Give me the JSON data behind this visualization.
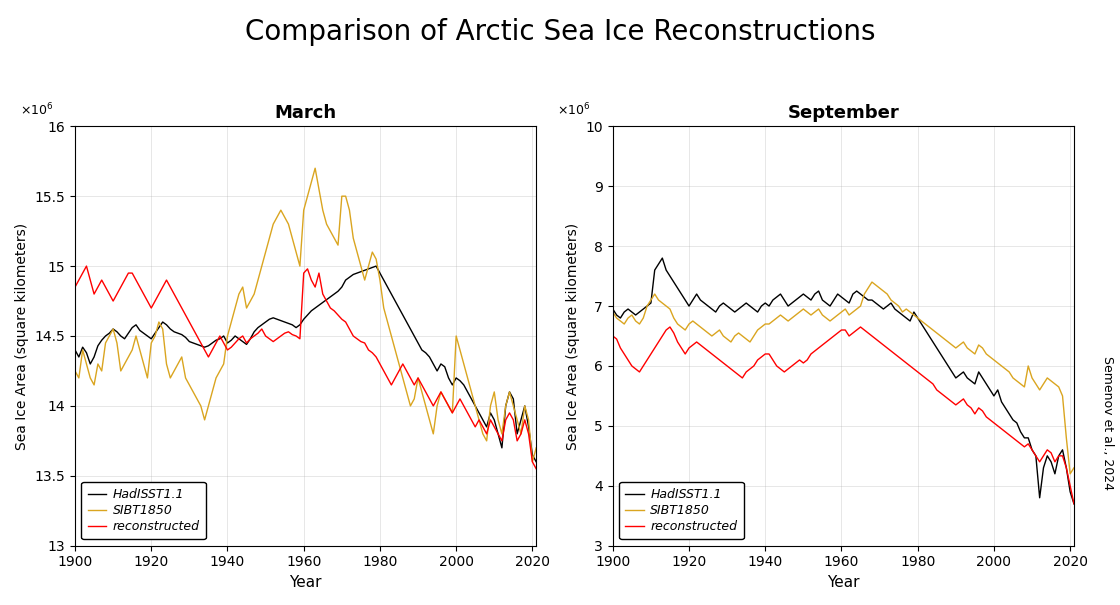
{
  "title": "Comparison of Arctic Sea Ice Reconstructions",
  "march_title": "March",
  "september_title": "September",
  "ylabel": "Sea Ice Area (square kilometers)",
  "xlabel": "Year",
  "watermark": "Semenov et al., 2024",
  "legend_labels": [
    "HadISST1.1",
    "SIBT1850",
    "reconstructed"
  ],
  "colors": [
    "black",
    "#DAA520",
    "red"
  ],
  "march_ylim": [
    13.0,
    16.0
  ],
  "march_yticks": [
    13.0,
    13.5,
    14.0,
    14.5,
    15.0,
    15.5,
    16.0
  ],
  "september_ylim": [
    3.0,
    10.0
  ],
  "september_yticks": [
    3.0,
    4.0,
    5.0,
    6.0,
    7.0,
    8.0,
    9.0,
    10.0
  ],
  "xlim": [
    1900,
    2021
  ],
  "xticks": [
    1900,
    1920,
    1940,
    1960,
    1980,
    2000,
    2020
  ],
  "march_had": {
    "years": [
      1900,
      1901,
      1902,
      1903,
      1904,
      1905,
      1906,
      1907,
      1908,
      1909,
      1910,
      1911,
      1912,
      1913,
      1914,
      1915,
      1916,
      1917,
      1918,
      1919,
      1920,
      1921,
      1922,
      1923,
      1924,
      1925,
      1926,
      1927,
      1928,
      1929,
      1930,
      1931,
      1932,
      1933,
      1934,
      1935,
      1936,
      1937,
      1938,
      1939,
      1940,
      1941,
      1942,
      1943,
      1944,
      1945,
      1946,
      1947,
      1948,
      1949,
      1950,
      1951,
      1952,
      1953,
      1954,
      1955,
      1956,
      1957,
      1958,
      1959,
      1960,
      1961,
      1962,
      1963,
      1964,
      1965,
      1966,
      1967,
      1968,
      1969,
      1970,
      1971,
      1972,
      1973,
      1974,
      1975,
      1976,
      1977,
      1978,
      1979,
      1980,
      1981,
      1982,
      1983,
      1984,
      1985,
      1986,
      1987,
      1988,
      1989,
      1990,
      1991,
      1992,
      1993,
      1994,
      1995,
      1996,
      1997,
      1998,
      1999,
      2000,
      2001,
      2002,
      2003,
      2004,
      2005,
      2006,
      2007,
      2008,
      2009,
      2010,
      2011,
      2012,
      2013,
      2014,
      2015,
      2016,
      2017,
      2018,
      2019,
      2020,
      2021
    ],
    "values": [
      14.4,
      14.35,
      14.42,
      14.38,
      14.3,
      14.35,
      14.43,
      14.47,
      14.5,
      14.52,
      14.55,
      14.53,
      14.5,
      14.48,
      14.52,
      14.56,
      14.58,
      14.54,
      14.52,
      14.5,
      14.48,
      14.52,
      14.56,
      14.6,
      14.58,
      14.55,
      14.53,
      14.52,
      14.51,
      14.49,
      14.46,
      14.45,
      14.44,
      14.43,
      14.42,
      14.43,
      14.45,
      14.47,
      14.48,
      14.5,
      14.45,
      14.47,
      14.5,
      14.48,
      14.46,
      14.44,
      14.48,
      14.53,
      14.56,
      14.58,
      14.6,
      14.62,
      14.63,
      14.62,
      14.61,
      14.6,
      14.59,
      14.58,
      14.56,
      14.58,
      14.62,
      14.65,
      14.68,
      14.7,
      14.72,
      14.74,
      14.76,
      14.78,
      14.8,
      14.82,
      14.85,
      14.9,
      14.92,
      14.94,
      14.95,
      14.96,
      14.97,
      14.98,
      14.99,
      15.0,
      14.95,
      14.9,
      14.85,
      14.8,
      14.75,
      14.7,
      14.65,
      14.6,
      14.55,
      14.5,
      14.45,
      14.4,
      14.38,
      14.35,
      14.3,
      14.25,
      14.3,
      14.28,
      14.2,
      14.15,
      14.2,
      14.18,
      14.15,
      14.1,
      14.05,
      14.0,
      13.95,
      13.9,
      13.85,
      13.95,
      13.9,
      13.8,
      13.7,
      14.0,
      14.1,
      14.05,
      13.8,
      13.9,
      14.0,
      13.85,
      13.65,
      13.6
    ]
  },
  "march_sibt": {
    "years": [
      1900,
      1901,
      1902,
      1903,
      1904,
      1905,
      1906,
      1907,
      1908,
      1909,
      1910,
      1911,
      1912,
      1913,
      1914,
      1915,
      1916,
      1917,
      1918,
      1919,
      1920,
      1921,
      1922,
      1923,
      1924,
      1925,
      1926,
      1927,
      1928,
      1929,
      1930,
      1931,
      1932,
      1933,
      1934,
      1935,
      1936,
      1937,
      1938,
      1939,
      1940,
      1941,
      1942,
      1943,
      1944,
      1945,
      1946,
      1947,
      1948,
      1949,
      1950,
      1951,
      1952,
      1953,
      1954,
      1955,
      1956,
      1957,
      1958,
      1959,
      1960,
      1961,
      1962,
      1963,
      1964,
      1965,
      1966,
      1967,
      1968,
      1969,
      1970,
      1971,
      1972,
      1973,
      1974,
      1975,
      1976,
      1977,
      1978,
      1979,
      1980,
      1981,
      1982,
      1983,
      1984,
      1985,
      1986,
      1987,
      1988,
      1989,
      1990,
      1991,
      1992,
      1993,
      1994,
      1995,
      1996,
      1997,
      1998,
      1999,
      2000,
      2001,
      2002,
      2003,
      2004,
      2005,
      2006,
      2007,
      2008,
      2009,
      2010,
      2011,
      2012,
      2013,
      2014,
      2015,
      2016,
      2017,
      2018,
      2019,
      2020,
      2021
    ],
    "values": [
      14.25,
      14.2,
      14.4,
      14.3,
      14.2,
      14.15,
      14.3,
      14.25,
      14.45,
      14.5,
      14.55,
      14.45,
      14.25,
      14.3,
      14.35,
      14.4,
      14.5,
      14.4,
      14.3,
      14.2,
      14.45,
      14.5,
      14.6,
      14.55,
      14.3,
      14.2,
      14.25,
      14.3,
      14.35,
      14.2,
      14.15,
      14.1,
      14.05,
      14.0,
      13.9,
      14.0,
      14.1,
      14.2,
      14.25,
      14.3,
      14.5,
      14.6,
      14.7,
      14.8,
      14.85,
      14.7,
      14.75,
      14.8,
      14.9,
      15.0,
      15.1,
      15.2,
      15.3,
      15.35,
      15.4,
      15.35,
      15.3,
      15.2,
      15.1,
      15.0,
      15.4,
      15.5,
      15.6,
      15.7,
      15.55,
      15.4,
      15.3,
      15.25,
      15.2,
      15.15,
      15.5,
      15.5,
      15.4,
      15.2,
      15.1,
      15.0,
      14.9,
      15.0,
      15.1,
      15.05,
      14.9,
      14.7,
      14.6,
      14.5,
      14.4,
      14.3,
      14.2,
      14.1,
      14.0,
      14.05,
      14.2,
      14.1,
      14.0,
      13.9,
      13.8,
      14.0,
      14.1,
      14.05,
      14.0,
      13.95,
      14.5,
      14.4,
      14.3,
      14.2,
      14.1,
      14.0,
      13.9,
      13.8,
      13.75,
      14.0,
      14.1,
      13.9,
      13.8,
      14.0,
      14.1,
      14.0,
      13.9,
      13.8,
      14.0,
      13.9,
      13.6,
      13.7
    ]
  },
  "march_rec": {
    "years": [
      1900,
      1901,
      1902,
      1903,
      1904,
      1905,
      1906,
      1907,
      1908,
      1909,
      1910,
      1911,
      1912,
      1913,
      1914,
      1915,
      1916,
      1917,
      1918,
      1919,
      1920,
      1921,
      1922,
      1923,
      1924,
      1925,
      1926,
      1927,
      1928,
      1929,
      1930,
      1931,
      1932,
      1933,
      1934,
      1935,
      1936,
      1937,
      1938,
      1939,
      1940,
      1941,
      1942,
      1943,
      1944,
      1945,
      1946,
      1947,
      1948,
      1949,
      1950,
      1951,
      1952,
      1953,
      1954,
      1955,
      1956,
      1957,
      1958,
      1959,
      1960,
      1961,
      1962,
      1963,
      1964,
      1965,
      1966,
      1967,
      1968,
      1969,
      1970,
      1971,
      1972,
      1973,
      1974,
      1975,
      1976,
      1977,
      1978,
      1979,
      1980,
      1981,
      1982,
      1983,
      1984,
      1985,
      1986,
      1987,
      1988,
      1989,
      1990,
      1991,
      1992,
      1993,
      1994,
      1995,
      1996,
      1997,
      1998,
      1999,
      2000,
      2001,
      2002,
      2003,
      2004,
      2005,
      2006,
      2007,
      2008,
      2009,
      2010,
      2011,
      2012,
      2013,
      2014,
      2015,
      2016,
      2017,
      2018,
      2019,
      2020,
      2021
    ],
    "values": [
      14.85,
      14.9,
      14.95,
      15.0,
      14.9,
      14.8,
      14.85,
      14.9,
      14.85,
      14.8,
      14.75,
      14.8,
      14.85,
      14.9,
      14.95,
      14.95,
      14.9,
      14.85,
      14.8,
      14.75,
      14.7,
      14.75,
      14.8,
      14.85,
      14.9,
      14.85,
      14.8,
      14.75,
      14.7,
      14.65,
      14.6,
      14.55,
      14.5,
      14.45,
      14.4,
      14.35,
      14.4,
      14.45,
      14.5,
      14.45,
      14.4,
      14.42,
      14.45,
      14.48,
      14.5,
      14.45,
      14.48,
      14.5,
      14.52,
      14.55,
      14.5,
      14.48,
      14.46,
      14.48,
      14.5,
      14.52,
      14.53,
      14.51,
      14.5,
      14.48,
      14.95,
      14.98,
      14.9,
      14.85,
      14.95,
      14.8,
      14.75,
      14.7,
      14.68,
      14.65,
      14.62,
      14.6,
      14.55,
      14.5,
      14.48,
      14.46,
      14.45,
      14.4,
      14.38,
      14.35,
      14.3,
      14.25,
      14.2,
      14.15,
      14.2,
      14.25,
      14.3,
      14.25,
      14.2,
      14.15,
      14.2,
      14.15,
      14.1,
      14.05,
      14.0,
      14.05,
      14.1,
      14.05,
      14.0,
      13.95,
      14.0,
      14.05,
      14.0,
      13.95,
      13.9,
      13.85,
      13.9,
      13.85,
      13.8,
      13.9,
      13.85,
      13.8,
      13.75,
      13.9,
      13.95,
      13.9,
      13.75,
      13.8,
      13.9,
      13.8,
      13.6,
      13.55
    ]
  },
  "sep_had": {
    "years": [
      1900,
      1901,
      1902,
      1903,
      1904,
      1905,
      1906,
      1907,
      1908,
      1909,
      1910,
      1911,
      1912,
      1913,
      1914,
      1915,
      1916,
      1917,
      1918,
      1919,
      1920,
      1921,
      1922,
      1923,
      1924,
      1925,
      1926,
      1927,
      1928,
      1929,
      1930,
      1931,
      1932,
      1933,
      1934,
      1935,
      1936,
      1937,
      1938,
      1939,
      1940,
      1941,
      1942,
      1943,
      1944,
      1945,
      1946,
      1947,
      1948,
      1949,
      1950,
      1951,
      1952,
      1953,
      1954,
      1955,
      1956,
      1957,
      1958,
      1959,
      1960,
      1961,
      1962,
      1963,
      1964,
      1965,
      1966,
      1967,
      1968,
      1969,
      1970,
      1971,
      1972,
      1973,
      1974,
      1975,
      1976,
      1977,
      1978,
      1979,
      1980,
      1981,
      1982,
      1983,
      1984,
      1985,
      1986,
      1987,
      1988,
      1989,
      1990,
      1991,
      1992,
      1993,
      1994,
      1995,
      1996,
      1997,
      1998,
      1999,
      2000,
      2001,
      2002,
      2003,
      2004,
      2005,
      2006,
      2007,
      2008,
      2009,
      2010,
      2011,
      2012,
      2013,
      2014,
      2015,
      2016,
      2017,
      2018,
      2019,
      2020,
      2021
    ],
    "values": [
      6.95,
      6.85,
      6.8,
      6.9,
      6.95,
      6.9,
      6.85,
      6.9,
      6.95,
      7.0,
      7.05,
      7.6,
      7.7,
      7.8,
      7.6,
      7.5,
      7.4,
      7.3,
      7.2,
      7.1,
      7.0,
      7.1,
      7.2,
      7.1,
      7.05,
      7.0,
      6.95,
      6.9,
      7.0,
      7.05,
      7.0,
      6.95,
      6.9,
      6.95,
      7.0,
      7.05,
      7.0,
      6.95,
      6.9,
      7.0,
      7.05,
      7.0,
      7.1,
      7.15,
      7.2,
      7.1,
      7.0,
      7.05,
      7.1,
      7.15,
      7.2,
      7.15,
      7.1,
      7.2,
      7.25,
      7.1,
      7.05,
      7.0,
      7.1,
      7.2,
      7.15,
      7.1,
      7.05,
      7.2,
      7.25,
      7.2,
      7.15,
      7.1,
      7.1,
      7.05,
      7.0,
      6.95,
      7.0,
      7.05,
      6.95,
      6.9,
      6.85,
      6.8,
      6.75,
      6.9,
      6.8,
      6.7,
      6.6,
      6.5,
      6.4,
      6.3,
      6.2,
      6.1,
      6.0,
      5.9,
      5.8,
      5.85,
      5.9,
      5.8,
      5.75,
      5.7,
      5.9,
      5.8,
      5.7,
      5.6,
      5.5,
      5.6,
      5.4,
      5.3,
      5.2,
      5.1,
      5.05,
      4.9,
      4.8,
      4.8,
      4.6,
      4.5,
      3.8,
      4.3,
      4.5,
      4.4,
      4.2,
      4.5,
      4.6,
      4.3,
      3.9,
      3.7
    ]
  },
  "sep_sibt": {
    "years": [
      1900,
      1901,
      1902,
      1903,
      1904,
      1905,
      1906,
      1907,
      1908,
      1909,
      1910,
      1911,
      1912,
      1913,
      1914,
      1915,
      1916,
      1917,
      1918,
      1919,
      1920,
      1921,
      1922,
      1923,
      1924,
      1925,
      1926,
      1927,
      1928,
      1929,
      1930,
      1931,
      1932,
      1933,
      1934,
      1935,
      1936,
      1937,
      1938,
      1939,
      1940,
      1941,
      1942,
      1943,
      1944,
      1945,
      1946,
      1947,
      1948,
      1949,
      1950,
      1951,
      1952,
      1953,
      1954,
      1955,
      1956,
      1957,
      1958,
      1959,
      1960,
      1961,
      1962,
      1963,
      1964,
      1965,
      1966,
      1967,
      1968,
      1969,
      1970,
      1971,
      1972,
      1973,
      1974,
      1975,
      1976,
      1977,
      1978,
      1979,
      1980,
      1981,
      1982,
      1983,
      1984,
      1985,
      1986,
      1987,
      1988,
      1989,
      1990,
      1991,
      1992,
      1993,
      1994,
      1995,
      1996,
      1997,
      1998,
      1999,
      2000,
      2001,
      2002,
      2003,
      2004,
      2005,
      2006,
      2007,
      2008,
      2009,
      2010,
      2011,
      2012,
      2013,
      2014,
      2015,
      2016,
      2017,
      2018,
      2019,
      2020,
      2021
    ],
    "values": [
      6.9,
      6.8,
      6.75,
      6.7,
      6.8,
      6.85,
      6.75,
      6.7,
      6.8,
      7.0,
      7.1,
      7.2,
      7.1,
      7.05,
      7.0,
      6.95,
      6.8,
      6.7,
      6.65,
      6.6,
      6.7,
      6.75,
      6.7,
      6.65,
      6.6,
      6.55,
      6.5,
      6.55,
      6.6,
      6.5,
      6.45,
      6.4,
      6.5,
      6.55,
      6.5,
      6.45,
      6.4,
      6.5,
      6.6,
      6.65,
      6.7,
      6.7,
      6.75,
      6.8,
      6.85,
      6.8,
      6.75,
      6.8,
      6.85,
      6.9,
      6.95,
      6.9,
      6.85,
      6.9,
      6.95,
      6.85,
      6.8,
      6.75,
      6.8,
      6.85,
      6.9,
      6.95,
      6.85,
      6.9,
      6.95,
      7.0,
      7.2,
      7.3,
      7.4,
      7.35,
      7.3,
      7.25,
      7.2,
      7.1,
      7.05,
      7.0,
      6.9,
      6.95,
      6.9,
      6.85,
      6.8,
      6.75,
      6.7,
      6.65,
      6.6,
      6.55,
      6.5,
      6.45,
      6.4,
      6.35,
      6.3,
      6.35,
      6.4,
      6.3,
      6.25,
      6.2,
      6.35,
      6.3,
      6.2,
      6.15,
      6.1,
      6.05,
      6.0,
      5.95,
      5.9,
      5.8,
      5.75,
      5.7,
      5.65,
      6.0,
      5.8,
      5.7,
      5.6,
      5.7,
      5.8,
      5.75,
      5.7,
      5.65,
      5.5,
      4.8,
      4.2,
      4.3
    ]
  },
  "sep_rec": {
    "years": [
      1900,
      1901,
      1902,
      1903,
      1904,
      1905,
      1906,
      1907,
      1908,
      1909,
      1910,
      1911,
      1912,
      1913,
      1914,
      1915,
      1916,
      1917,
      1918,
      1919,
      1920,
      1921,
      1922,
      1923,
      1924,
      1925,
      1926,
      1927,
      1928,
      1929,
      1930,
      1931,
      1932,
      1933,
      1934,
      1935,
      1936,
      1937,
      1938,
      1939,
      1940,
      1941,
      1942,
      1943,
      1944,
      1945,
      1946,
      1947,
      1948,
      1949,
      1950,
      1951,
      1952,
      1953,
      1954,
      1955,
      1956,
      1957,
      1958,
      1959,
      1960,
      1961,
      1962,
      1963,
      1964,
      1965,
      1966,
      1967,
      1968,
      1969,
      1970,
      1971,
      1972,
      1973,
      1974,
      1975,
      1976,
      1977,
      1978,
      1979,
      1980,
      1981,
      1982,
      1983,
      1984,
      1985,
      1986,
      1987,
      1988,
      1989,
      1990,
      1991,
      1992,
      1993,
      1994,
      1995,
      1996,
      1997,
      1998,
      1999,
      2000,
      2001,
      2002,
      2003,
      2004,
      2005,
      2006,
      2007,
      2008,
      2009,
      2010,
      2011,
      2012,
      2013,
      2014,
      2015,
      2016,
      2017,
      2018,
      2019,
      2020,
      2021
    ],
    "values": [
      6.5,
      6.45,
      6.3,
      6.2,
      6.1,
      6.0,
      5.95,
      5.9,
      6.0,
      6.1,
      6.2,
      6.3,
      6.4,
      6.5,
      6.6,
      6.65,
      6.55,
      6.4,
      6.3,
      6.2,
      6.3,
      6.35,
      6.4,
      6.35,
      6.3,
      6.25,
      6.2,
      6.15,
      6.1,
      6.05,
      6.0,
      5.95,
      5.9,
      5.85,
      5.8,
      5.9,
      5.95,
      6.0,
      6.1,
      6.15,
      6.2,
      6.2,
      6.1,
      6.0,
      5.95,
      5.9,
      5.95,
      6.0,
      6.05,
      6.1,
      6.05,
      6.1,
      6.2,
      6.25,
      6.3,
      6.35,
      6.4,
      6.45,
      6.5,
      6.55,
      6.6,
      6.6,
      6.5,
      6.55,
      6.6,
      6.65,
      6.6,
      6.55,
      6.5,
      6.45,
      6.4,
      6.35,
      6.3,
      6.25,
      6.2,
      6.15,
      6.1,
      6.05,
      6.0,
      5.95,
      5.9,
      5.85,
      5.8,
      5.75,
      5.7,
      5.6,
      5.55,
      5.5,
      5.45,
      5.4,
      5.35,
      5.4,
      5.45,
      5.35,
      5.3,
      5.2,
      5.3,
      5.25,
      5.15,
      5.1,
      5.05,
      5.0,
      4.95,
      4.9,
      4.85,
      4.8,
      4.75,
      4.7,
      4.65,
      4.7,
      4.6,
      4.5,
      4.4,
      4.5,
      4.6,
      4.55,
      4.4,
      4.5,
      4.5,
      4.3,
      4.0,
      3.7
    ]
  }
}
